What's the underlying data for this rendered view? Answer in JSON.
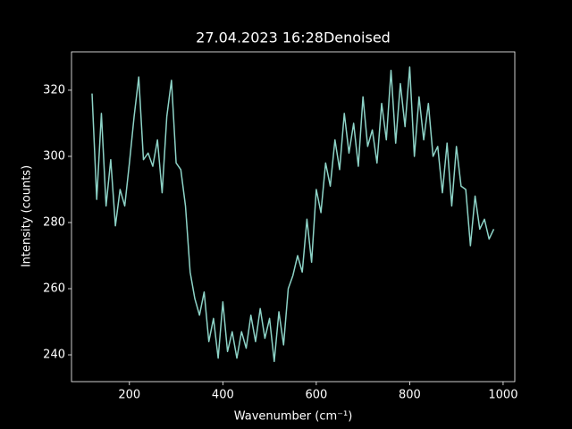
{
  "chart_data": {
    "type": "line",
    "title": "27.04.2023 16:28Denoised",
    "x_label": "Wavenumber (cm⁻¹)",
    "y_label": "Intensity (counts)",
    "color": "#8dd3c7",
    "x": [
      120,
      130,
      140,
      150,
      160,
      170,
      180,
      190,
      200,
      210,
      220,
      230,
      240,
      250,
      260,
      270,
      280,
      290,
      300,
      310,
      320,
      330,
      340,
      350,
      360,
      370,
      380,
      390,
      400,
      410,
      420,
      430,
      440,
      450,
      460,
      470,
      480,
      490,
      500,
      510,
      520,
      530,
      540,
      550,
      560,
      570,
      580,
      590,
      600,
      610,
      620,
      630,
      640,
      650,
      660,
      670,
      680,
      690,
      700,
      710,
      720,
      730,
      740,
      750,
      760,
      770,
      780,
      790,
      800,
      810,
      820,
      830,
      840,
      850,
      860,
      870,
      880,
      890,
      900,
      910,
      920,
      930,
      940,
      950,
      960,
      970,
      980
    ],
    "values": [
      319,
      287,
      313,
      285,
      299,
      279,
      290,
      285,
      298,
      312,
      324,
      299,
      301,
      297,
      305,
      289,
      312,
      323,
      298,
      296,
      285,
      265,
      257,
      252,
      259,
      244,
      251,
      239,
      256,
      241,
      247,
      239,
      247,
      242,
      252,
      244,
      254,
      245,
      251,
      238,
      253,
      243,
      260,
      264,
      270,
      265,
      281,
      268,
      290,
      283,
      298,
      291,
      305,
      296,
      313,
      301,
      310,
      297,
      318,
      303,
      308,
      298,
      316,
      305,
      326,
      304,
      322,
      309,
      327,
      300,
      318,
      305,
      316,
      300,
      303,
      289,
      304,
      285,
      303,
      291,
      290,
      273,
      288,
      278,
      281,
      275,
      278
    ],
    "xlim": [
      76,
      1025
    ],
    "ylim": [
      231.9,
      331.6
    ],
    "xticks": [
      200,
      400,
      600,
      800,
      1000
    ],
    "yticks": [
      240,
      260,
      280,
      300,
      320
    ]
  }
}
